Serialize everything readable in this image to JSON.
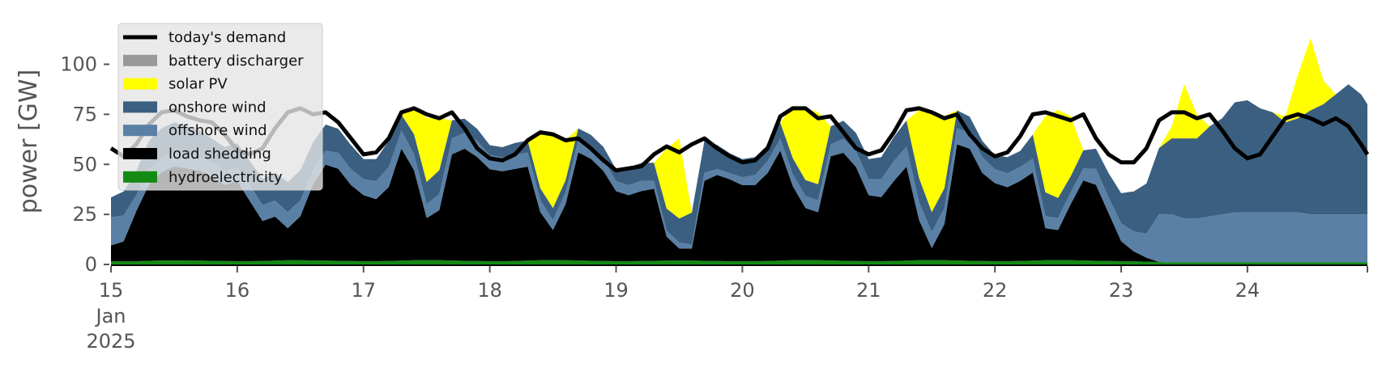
{
  "chart_data": {
    "type": "area",
    "ylabel": "power [GW]",
    "xlabel": "",
    "ylim": [
      0,
      120
    ],
    "xlim": [
      15,
      24.95
    ],
    "grid": false,
    "legend_position": "top-left",
    "x_tick_labels": [
      "15",
      "16",
      "17",
      "18",
      "19",
      "20",
      "21",
      "22",
      "23",
      "24"
    ],
    "x_tick_sublabels": [
      "Jan",
      "2025"
    ],
    "y_ticks": [
      0,
      25,
      50,
      75,
      100
    ],
    "legend": [
      {
        "label": "today's demand",
        "type": "line",
        "color": "#000000"
      },
      {
        "label": "battery discharger",
        "type": "patch",
        "color": "#999999"
      },
      {
        "label": "solar PV",
        "type": "patch",
        "color": "#ffff00"
      },
      {
        "label": "onshore wind",
        "type": "patch",
        "color": "#3b5f80"
      },
      {
        "label": "offshore wind",
        "type": "patch",
        "color": "#5a80a5"
      },
      {
        "label": "load shedding",
        "type": "patch",
        "color": "#000000"
      },
      {
        "label": "hydroelectricity",
        "type": "patch",
        "color": "#138a13"
      }
    ],
    "x": [
      15.0,
      15.1,
      15.2,
      15.3,
      15.4,
      15.5,
      15.6,
      15.7,
      15.8,
      15.9,
      16.0,
      16.1,
      16.2,
      16.3,
      16.4,
      16.5,
      16.6,
      16.7,
      16.8,
      16.9,
      17.0,
      17.1,
      17.2,
      17.3,
      17.4,
      17.5,
      17.6,
      17.7,
      17.8,
      17.9,
      18.0,
      18.1,
      18.2,
      18.3,
      18.4,
      18.5,
      18.6,
      18.7,
      18.8,
      18.9,
      19.0,
      19.1,
      19.2,
      19.3,
      19.4,
      19.5,
      19.6,
      19.7,
      19.8,
      19.9,
      20.0,
      20.1,
      20.2,
      20.3,
      20.4,
      20.5,
      20.6,
      20.7,
      20.8,
      20.9,
      21.0,
      21.1,
      21.2,
      21.3,
      21.4,
      21.5,
      21.6,
      21.7,
      21.8,
      21.9,
      22.0,
      22.1,
      22.2,
      22.3,
      22.4,
      22.5,
      22.6,
      22.7,
      22.8,
      22.9,
      23.0,
      23.1,
      23.2,
      23.3,
      23.4,
      23.5,
      23.6,
      23.7,
      23.8,
      23.9,
      24.0,
      24.1,
      24.2,
      24.3,
      24.4,
      24.5,
      24.6,
      24.7,
      24.8,
      24.9,
      24.95
    ],
    "demand": [
      58,
      54,
      60,
      70,
      76,
      77,
      74,
      72,
      71,
      65,
      57,
      55,
      58,
      68,
      76,
      78,
      75,
      76,
      71,
      63,
      55,
      56,
      63,
      76,
      78,
      75,
      73,
      76,
      68,
      58,
      53,
      52,
      55,
      62,
      66,
      65,
      62,
      63,
      58,
      52,
      47,
      48,
      49,
      55,
      59,
      56,
      60,
      63,
      58,
      54,
      51,
      52,
      58,
      74,
      78,
      78,
      73,
      74,
      66,
      58,
      55,
      57,
      66,
      77,
      78,
      76,
      73,
      75,
      65,
      58,
      54,
      56,
      64,
      75,
      76,
      74,
      72,
      75,
      63,
      55,
      51,
      51,
      58,
      72,
      76,
      76,
      73,
      75,
      67,
      58,
      53,
      55,
      64,
      73,
      75,
      73,
      70,
      73,
      69,
      60,
      55
    ],
    "series": [
      {
        "name": "hydroelectricity",
        "values": [
          1.5,
          1.5,
          1.6,
          1.8,
          2.0,
          2.0,
          2.0,
          1.9,
          1.8,
          1.7,
          1.6,
          1.6,
          1.7,
          1.9,
          2.1,
          2.1,
          2.0,
          1.9,
          1.8,
          1.7,
          1.6,
          1.6,
          1.7,
          1.9,
          2.1,
          2.2,
          2.1,
          2.0,
          1.8,
          1.7,
          1.6,
          1.6,
          1.7,
          1.9,
          2.1,
          2.2,
          2.1,
          2.0,
          1.8,
          1.7,
          1.6,
          1.6,
          1.7,
          1.8,
          1.9,
          2.0,
          1.9,
          1.8,
          1.7,
          1.6,
          1.6,
          1.6,
          1.7,
          1.9,
          2.1,
          2.2,
          2.1,
          2.0,
          1.8,
          1.7,
          1.6,
          1.6,
          1.7,
          1.9,
          2.1,
          2.2,
          2.1,
          2.0,
          1.8,
          1.7,
          1.6,
          1.6,
          1.7,
          1.9,
          2.1,
          2.2,
          2.1,
          2.0,
          1.8,
          1.7,
          1.6,
          1.5,
          1.4,
          1.2,
          1.0,
          1.0,
          1.0,
          1.0,
          1.0,
          1.0,
          1.0,
          1.0,
          1.0,
          1.0,
          1.0,
          1.0,
          1.0,
          1.0,
          1.0,
          1.0,
          1.0
        ]
      },
      {
        "name": "load shedding",
        "values": [
          8,
          10,
          25,
          38,
          44,
          47,
          46,
          45,
          42,
          38,
          40,
          30,
          20,
          22,
          16,
          22,
          38,
          48,
          46,
          38,
          33,
          31,
          37,
          56,
          45,
          21,
          25,
          53,
          56,
          52,
          46,
          45,
          46,
          47,
          24,
          15,
          28,
          54,
          51,
          45,
          35,
          33,
          35,
          36,
          12,
          6,
          6,
          40,
          43,
          41,
          38,
          38,
          44,
          55,
          37,
          26,
          24,
          52,
          54,
          47,
          33,
          32,
          40,
          47,
          20,
          6,
          18,
          58,
          56,
          44,
          39,
          37,
          40,
          44,
          16,
          15,
          28,
          40,
          38,
          24,
          10,
          5,
          2,
          0,
          0,
          0,
          0,
          0,
          0,
          0,
          0,
          0,
          0,
          0,
          0,
          0,
          0,
          0,
          0,
          0,
          0
        ]
      },
      {
        "name": "offshore wind",
        "values": [
          14,
          13,
          8,
          8,
          7,
          7,
          7,
          7,
          7,
          7,
          7,
          8,
          8,
          8,
          8,
          8,
          7,
          7,
          8,
          8,
          8,
          9,
          10,
          9,
          8,
          7,
          8,
          8,
          8,
          8,
          7,
          7,
          7,
          7,
          6,
          5,
          6,
          6,
          6,
          6,
          5,
          5,
          5,
          4,
          3,
          3,
          2,
          4,
          3,
          3,
          4,
          5,
          6,
          6,
          6,
          6,
          6,
          6,
          7,
          8,
          8,
          9,
          10,
          10,
          9,
          8,
          8,
          8,
          8,
          8,
          7,
          7,
          7,
          7,
          6,
          6,
          6,
          6,
          8,
          8,
          9,
          10,
          12,
          24,
          24,
          22,
          22,
          23,
          24,
          25,
          25,
          25,
          25,
          25,
          25,
          24,
          24,
          24,
          24,
          24,
          24
        ]
      },
      {
        "name": "onshore wind",
        "values": [
          10,
          12,
          12,
          14,
          15,
          15,
          14,
          13,
          12,
          12,
          12,
          12,
          13,
          14,
          15,
          15,
          14,
          13,
          12,
          12,
          10,
          11,
          13,
          8,
          10,
          11,
          12,
          9,
          7,
          6,
          5,
          5,
          6,
          6,
          6,
          6,
          6,
          6,
          6,
          6,
          6,
          9,
          9,
          9,
          11,
          12,
          16,
          16,
          12,
          10,
          9,
          9,
          8,
          8,
          8,
          8,
          8,
          9,
          9,
          9,
          10,
          11,
          12,
          13,
          12,
          10,
          10,
          9,
          8,
          8,
          7,
          8,
          8,
          12,
          12,
          10,
          8,
          9,
          10,
          12,
          15,
          20,
          25,
          33,
          38,
          40,
          40,
          45,
          48,
          55,
          56,
          52,
          50,
          45,
          47,
          52,
          55,
          60,
          65,
          60,
          55
        ]
      },
      {
        "name": "solar PV",
        "values": [
          0,
          0,
          0,
          0,
          0,
          0,
          0,
          0,
          0,
          0,
          0,
          0,
          0,
          0,
          0,
          0,
          0,
          0,
          0,
          0,
          0,
          0,
          0,
          0,
          14,
          32,
          26,
          0,
          0,
          0,
          0,
          0,
          0,
          0,
          28,
          38,
          20,
          0,
          0,
          0,
          0,
          0,
          0,
          0,
          30,
          40,
          0,
          0,
          0,
          0,
          0,
          0,
          0,
          0,
          26,
          36,
          36,
          0,
          0,
          0,
          0,
          0,
          0,
          0,
          34,
          50,
          36,
          0,
          0,
          0,
          0,
          0,
          0,
          0,
          38,
          44,
          30,
          0,
          0,
          0,
          0,
          0,
          0,
          0,
          6,
          27,
          12,
          0,
          0,
          0,
          0,
          0,
          0,
          3,
          22,
          36,
          12,
          0,
          0,
          0,
          0
        ]
      },
      {
        "name": "battery discharger",
        "values": [
          0,
          0,
          0,
          0,
          0,
          0,
          0,
          0,
          0,
          0,
          0,
          0,
          0,
          0,
          0,
          0,
          0,
          0,
          0,
          0,
          0,
          0,
          0,
          0,
          0,
          0,
          0,
          0,
          0,
          0,
          0,
          0,
          0,
          0,
          0,
          0,
          0,
          0,
          0,
          0,
          0,
          0,
          0,
          0,
          0,
          0,
          0,
          0,
          0,
          0,
          0,
          0,
          0,
          0,
          0,
          0,
          0,
          0,
          0,
          0,
          0,
          0,
          0,
          0,
          0,
          0,
          0,
          0,
          0,
          0,
          0,
          0,
          0,
          0,
          0,
          0,
          0,
          0,
          0,
          0,
          0,
          0,
          0,
          0,
          0,
          0,
          0,
          0,
          0,
          0,
          0,
          0,
          0,
          0,
          0,
          0,
          0,
          0,
          0,
          0,
          0
        ]
      }
    ]
  }
}
